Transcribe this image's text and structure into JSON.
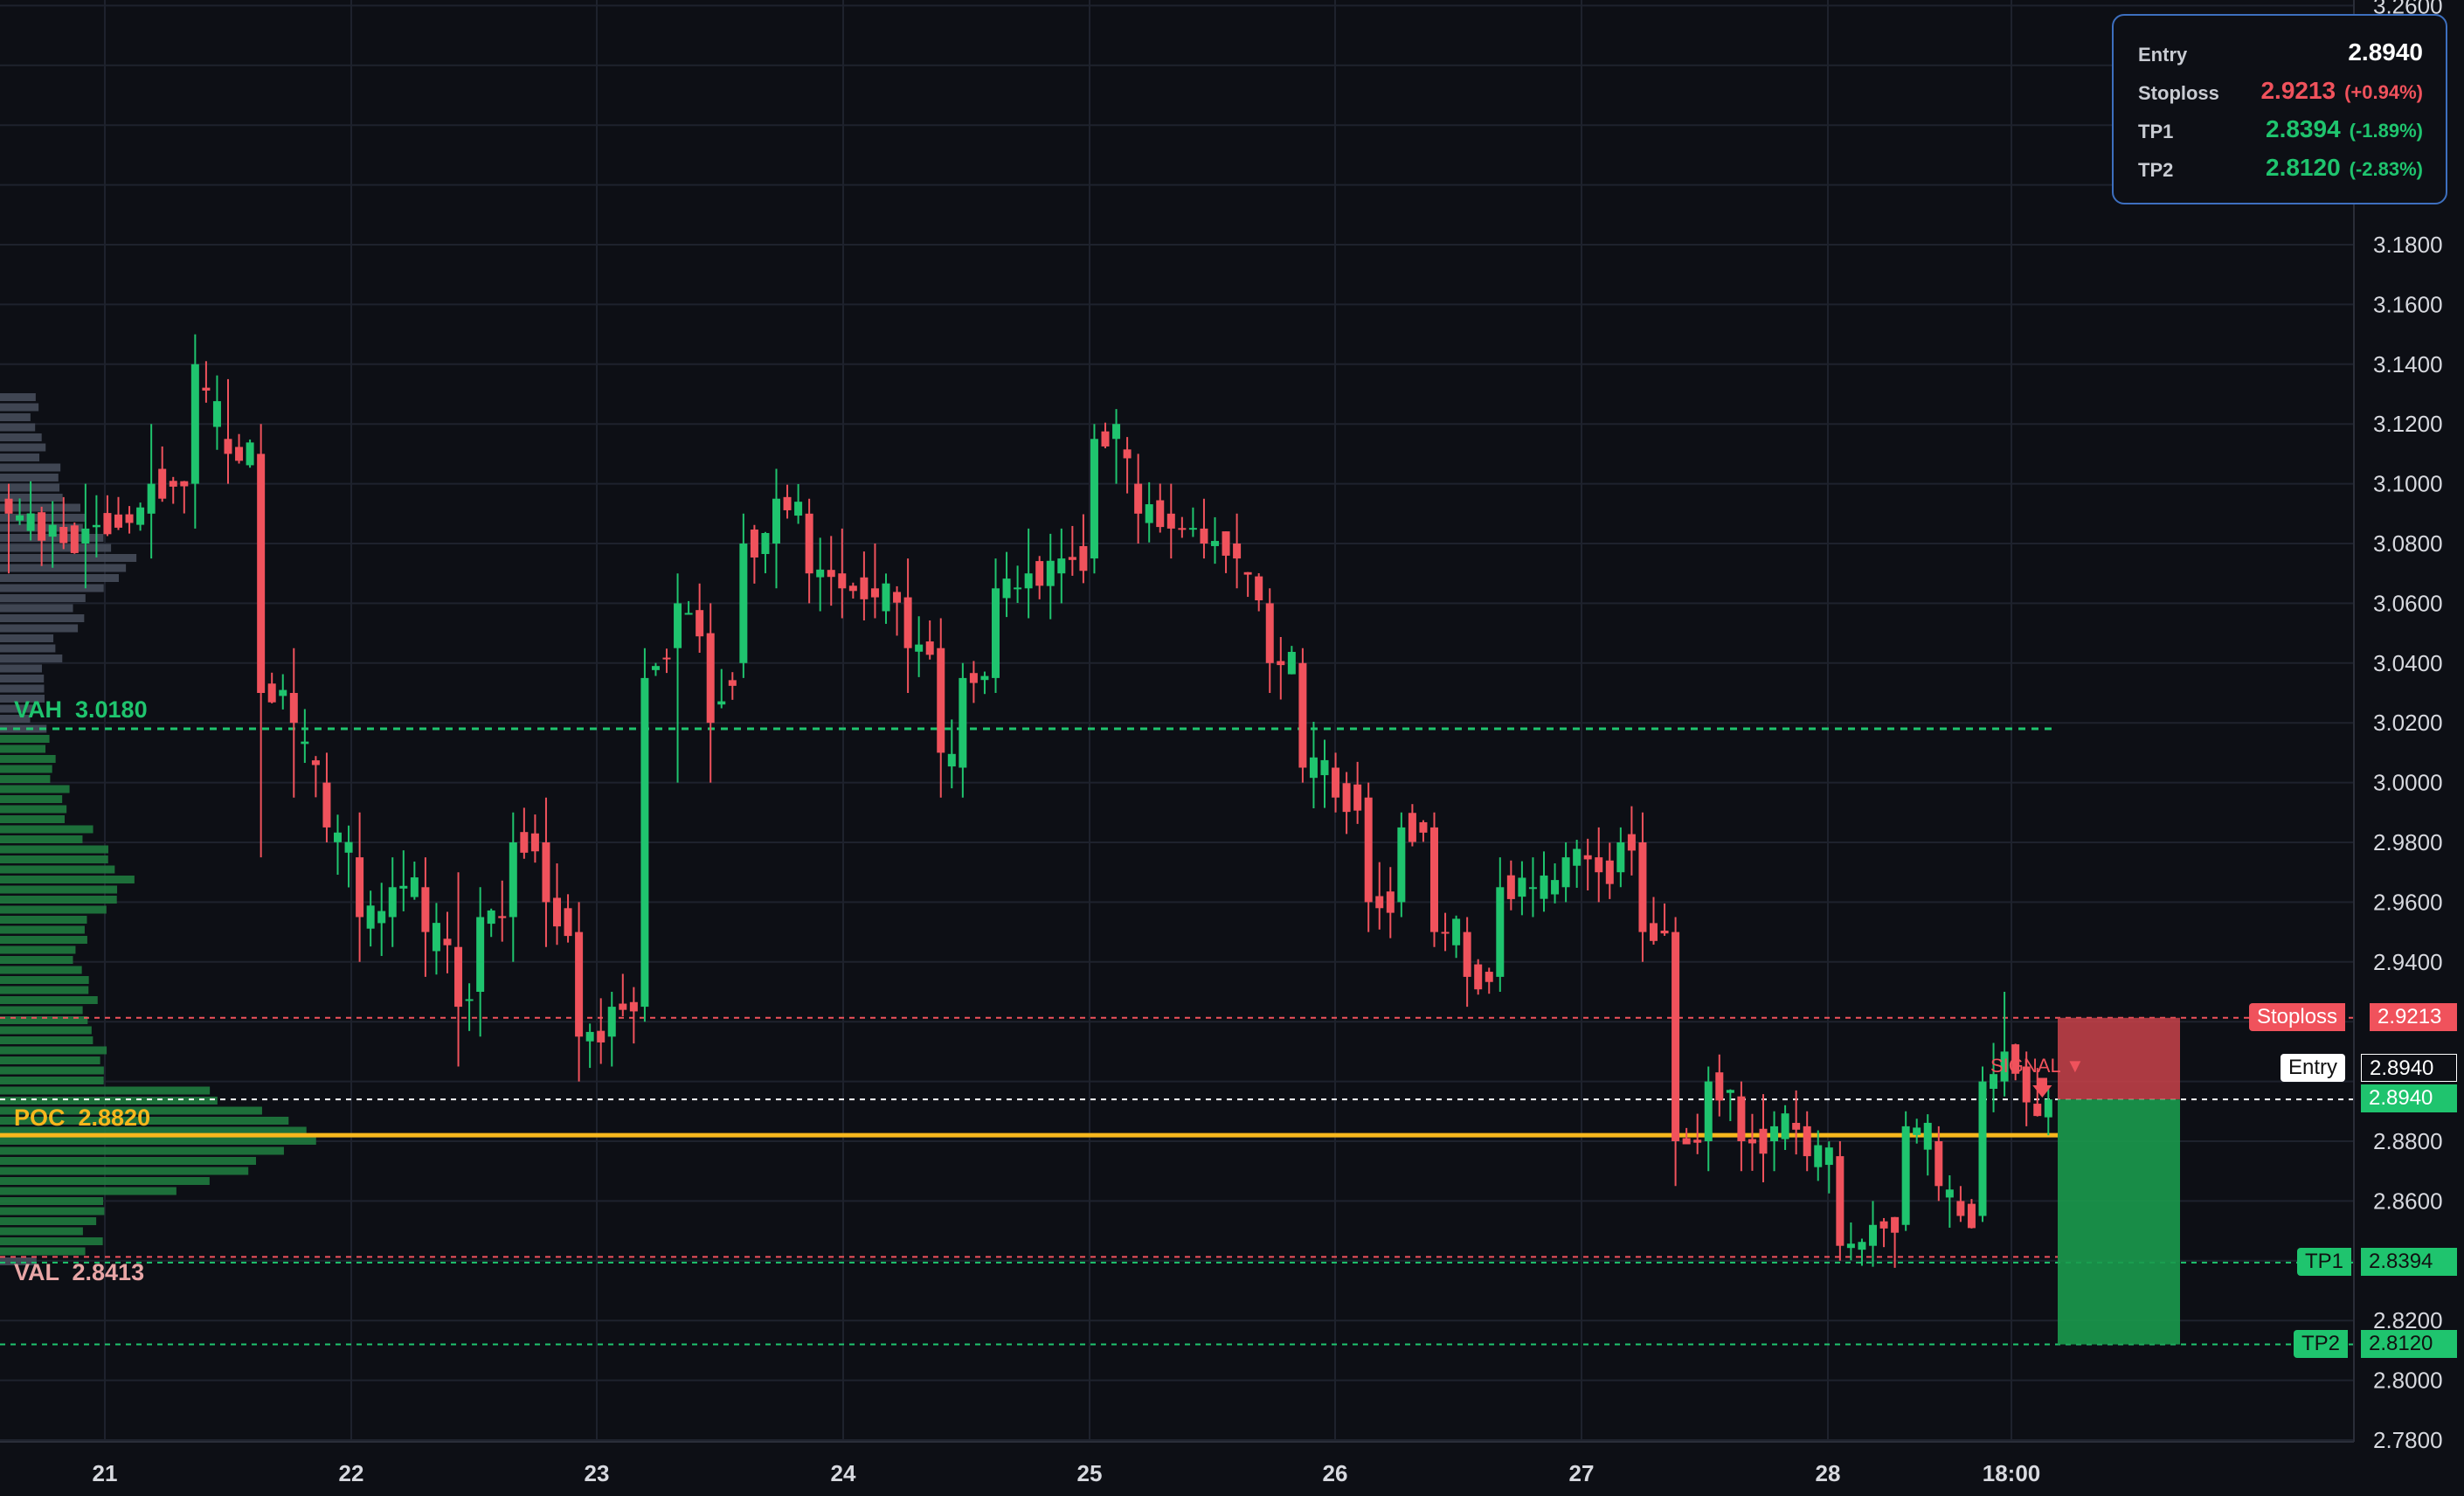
{
  "y_axis": {
    "ticks": [
      "3.2600",
      "3.1800",
      "3.1600",
      "3.1400",
      "3.1200",
      "3.1000",
      "3.0800",
      "3.0600",
      "3.0400",
      "3.0200",
      "3.0000",
      "2.9800",
      "2.9600",
      "2.9400",
      "2.8800",
      "2.8600",
      "2.8200",
      "2.8000",
      "2.7800"
    ]
  },
  "x_axis": {
    "labels": [
      "21",
      "22",
      "23",
      "24",
      "25",
      "26",
      "27",
      "28",
      "18:00"
    ]
  },
  "panel": {
    "entry_label": "Entry",
    "entry_value": "2.8940",
    "stoploss_label": "Stoploss",
    "stoploss_value": "2.9213",
    "stoploss_pct": "(+0.94%)",
    "tp1_label": "TP1",
    "tp1_value": "2.8394",
    "tp1_pct": "(-1.89%)",
    "tp2_label": "TP2",
    "tp2_value": "2.8120",
    "tp2_pct": "(-2.83%)"
  },
  "levels": {
    "vah_label": "VAH  3.0180",
    "poc_label": "POC  2.8820",
    "val_label": "VAL  2.8413",
    "signal_label": "SIGNAL ▼"
  },
  "price_tags": {
    "stoploss_label": "Stoploss",
    "stoploss_value": "2.9213",
    "entry_label": "Entry",
    "entry_value": "2.8940",
    "current_value": "2.8940",
    "tp1_label": "TP1",
    "tp1_value": "2.8394",
    "tp2_label": "TP2",
    "tp2_value": "2.8120"
  },
  "colors": {
    "background": "#0d0f15",
    "up": "#1fc46e",
    "down": "#f0525c",
    "poc": "#f7b71d",
    "vah": "#1fc46e",
    "val_red": "#f0525c",
    "panel_border": "#3d6fbf"
  },
  "chart_data": {
    "type": "candlestick",
    "symbol_price_scale": {
      "ymin": 2.78,
      "ymax": 3.26
    },
    "x_labels": [
      "21",
      "22",
      "23",
      "24",
      "25",
      "26",
      "27",
      "28",
      "18:00"
    ],
    "levels": {
      "entry": 2.894,
      "stoploss": 2.9213,
      "tp1": 2.8394,
      "tp2": 2.812,
      "vah": 3.018,
      "poc": 2.882,
      "val": 2.8413
    },
    "ohlc_anchors": [
      [
        0,
        3.095,
        3.1,
        3.07,
        3.09
      ],
      [
        7,
        3.08,
        3.1,
        3.065,
        3.085
      ],
      [
        13,
        3.09,
        3.12,
        3.075,
        3.1
      ],
      [
        17,
        3.1,
        3.15,
        3.085,
        3.14
      ],
      [
        20,
        3.115,
        3.135,
        3.1,
        3.11
      ],
      [
        23,
        3.11,
        3.12,
        2.975,
        3.03
      ],
      [
        26,
        3.03,
        3.045,
        2.995,
        3.02
      ],
      [
        29,
        3.0,
        3.01,
        2.98,
        2.985
      ],
      [
        32,
        2.975,
        2.99,
        2.94,
        2.955
      ],
      [
        35,
        2.955,
        2.975,
        2.945,
        2.965
      ],
      [
        38,
        2.965,
        2.975,
        2.935,
        2.95
      ],
      [
        41,
        2.945,
        2.97,
        2.905,
        2.925
      ],
      [
        43,
        2.93,
        2.965,
        2.915,
        2.955
      ],
      [
        46,
        2.955,
        2.99,
        2.94,
        2.98
      ],
      [
        49,
        2.98,
        2.995,
        2.945,
        2.96
      ],
      [
        52,
        2.95,
        2.96,
        2.9,
        2.915
      ],
      [
        55,
        2.915,
        2.93,
        2.905,
        2.925
      ],
      [
        58,
        2.925,
        3.045,
        2.92,
        3.035
      ],
      [
        61,
        3.045,
        3.07,
        3.0,
        3.06
      ],
      [
        64,
        3.05,
        3.06,
        3.0,
        3.02
      ],
      [
        67,
        3.04,
        3.09,
        3.035,
        3.08
      ],
      [
        70,
        3.08,
        3.105,
        3.065,
        3.095
      ],
      [
        73,
        3.09,
        3.095,
        3.06,
        3.07
      ],
      [
        76,
        3.07,
        3.085,
        3.055,
        3.065
      ],
      [
        79,
        3.065,
        3.08,
        3.055,
        3.062
      ],
      [
        82,
        3.062,
        3.075,
        3.03,
        3.045
      ],
      [
        85,
        3.045,
        3.055,
        2.995,
        3.01
      ],
      [
        87,
        3.005,
        3.04,
        2.995,
        3.035
      ],
      [
        90,
        3.035,
        3.075,
        3.03,
        3.065
      ],
      [
        93,
        3.065,
        3.085,
        3.055,
        3.07
      ],
      [
        96,
        3.07,
        3.085,
        3.06,
        3.075
      ],
      [
        99,
        3.075,
        3.12,
        3.07,
        3.115
      ],
      [
        101,
        3.115,
        3.125,
        3.1,
        3.12
      ],
      [
        103,
        3.1,
        3.11,
        3.08,
        3.09
      ],
      [
        106,
        3.09,
        3.1,
        3.075,
        3.085
      ],
      [
        109,
        3.085,
        3.095,
        3.075,
        3.08
      ],
      [
        112,
        3.08,
        3.09,
        3.065,
        3.075
      ],
      [
        115,
        3.06,
        3.065,
        3.03,
        3.04
      ],
      [
        118,
        3.04,
        3.045,
        3.0,
        3.005
      ],
      [
        121,
        3.005,
        3.01,
        2.99,
        2.995
      ],
      [
        124,
        2.995,
        3.0,
        2.95,
        2.96
      ],
      [
        127,
        2.96,
        2.99,
        2.955,
        2.985
      ],
      [
        130,
        2.985,
        2.99,
        2.945,
        2.95
      ],
      [
        133,
        2.95,
        2.955,
        2.925,
        2.935
      ],
      [
        136,
        2.935,
        2.975,
        2.93,
        2.965
      ],
      [
        139,
        2.965,
        2.975,
        2.955,
        2.965
      ],
      [
        142,
        2.965,
        2.98,
        2.96,
        2.975
      ],
      [
        145,
        2.975,
        2.985,
        2.96,
        2.97
      ],
      [
        147,
        2.97,
        2.985,
        2.965,
        2.98
      ],
      [
        149,
        2.98,
        2.99,
        2.94,
        2.95
      ],
      [
        152,
        2.95,
        2.955,
        2.865,
        2.88
      ],
      [
        155,
        2.88,
        2.905,
        2.87,
        2.9
      ],
      [
        158,
        2.895,
        2.9,
        2.87,
        2.88
      ],
      [
        161,
        2.88,
        2.89,
        2.87,
        2.885
      ],
      [
        164,
        2.885,
        2.89,
        2.87,
        2.875
      ],
      [
        167,
        2.875,
        2.88,
        2.84,
        2.845
      ],
      [
        170,
        2.845,
        2.86,
        2.838,
        2.852
      ],
      [
        173,
        2.852,
        2.89,
        2.85,
        2.885
      ],
      [
        176,
        2.88,
        2.885,
        2.86,
        2.865
      ],
      [
        178,
        2.86,
        2.865,
        2.853,
        2.855
      ],
      [
        180,
        2.855,
        2.905,
        2.853,
        2.9
      ],
      [
        182,
        2.9,
        2.93,
        2.895,
        2.91
      ],
      [
        184,
        2.905,
        2.91,
        2.885,
        2.893
      ],
      [
        186,
        2.888,
        2.898,
        2.882,
        2.894
      ]
    ]
  }
}
